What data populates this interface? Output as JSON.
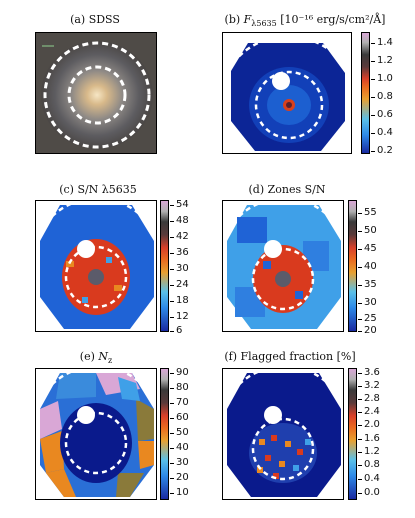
{
  "panels": {
    "a": {
      "title": "(a) SDSS"
    },
    "b": {
      "title_prefix": "(b) ",
      "title_symbol": "F",
      "title_sub": "λ5635",
      "title_rest": " [10⁻¹⁶ erg/s/cm²/Å]",
      "ticks": [
        "1.4",
        "1.2",
        "1.0",
        "0.8",
        "0.6",
        "0.4",
        "0.2"
      ]
    },
    "c": {
      "title": "(c) S/N λ5635",
      "ticks": [
        "54",
        "48",
        "42",
        "36",
        "30",
        "24",
        "18",
        "12",
        "6"
      ]
    },
    "d": {
      "title": "(d) Zones S/N",
      "ticks": [
        "55",
        "50",
        "45",
        "40",
        "35",
        "30",
        "25",
        "20"
      ]
    },
    "e": {
      "title_prefix": "(e) ",
      "title_symbol": "N",
      "title_sub": "z",
      "ticks": [
        "90",
        "80",
        "70",
        "60",
        "50",
        "40",
        "30",
        "20",
        "10"
      ]
    },
    "f": {
      "title": "(f) Flagged fraction [%]",
      "ticks": [
        "3.6",
        "3.2",
        "2.8",
        "2.4",
        "2.0",
        "1.6",
        "1.2",
        "0.8",
        "0.4",
        "0.0"
      ]
    }
  },
  "colors": {
    "dark_blue": "#0a1a8c",
    "mid_blue": "#1f63d6",
    "light_blue": "#3fa0e8",
    "red": "#d93a1e",
    "orange": "#e98820",
    "galaxy_bg": "#5a5650"
  }
}
